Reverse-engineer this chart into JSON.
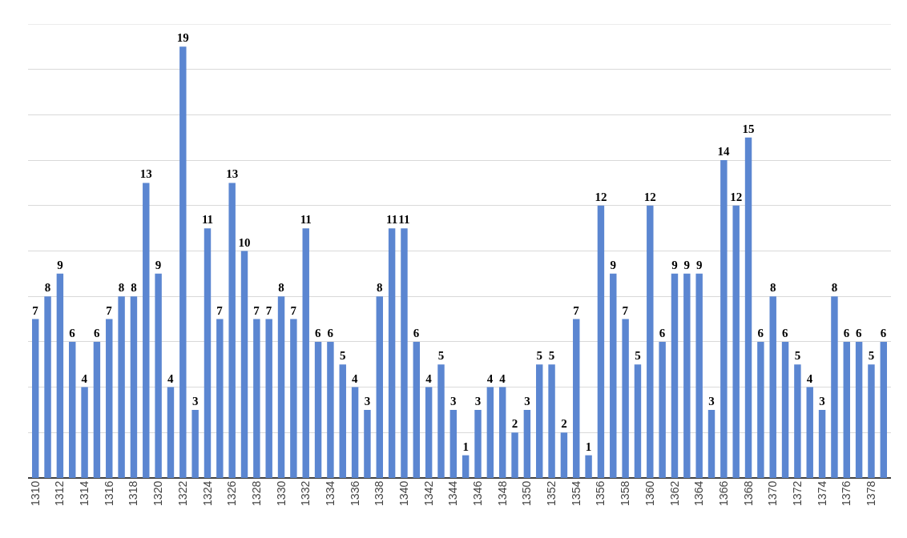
{
  "chart_data": {
    "type": "bar",
    "categories": [
      "1310",
      null,
      "1312",
      null,
      "1314",
      null,
      "1316",
      null,
      "1318",
      null,
      "1320",
      null,
      "1322",
      null,
      "1324",
      null,
      "1326",
      null,
      "1328",
      null,
      "1330",
      null,
      "1332",
      null,
      "1334",
      null,
      "1336",
      null,
      "1338",
      null,
      "1340",
      null,
      "1342",
      null,
      "1344",
      null,
      "1346",
      null,
      "1348",
      null,
      "1350",
      null,
      "1352",
      null,
      "1354",
      null,
      "1356",
      null,
      "1358",
      null,
      "1360",
      null,
      "1362",
      null,
      "1364",
      null,
      "1366",
      null,
      "1368",
      null,
      "1370",
      null,
      "1372",
      null,
      "1374",
      null,
      "1376",
      null,
      "1378",
      null
    ],
    "values": [
      7,
      8,
      9,
      6,
      4,
      6,
      7,
      8,
      8,
      13,
      9,
      4,
      19,
      3,
      11,
      7,
      13,
      10,
      7,
      7,
      8,
      7,
      11,
      6,
      6,
      5,
      4,
      3,
      8,
      11,
      11,
      6,
      4,
      5,
      3,
      1,
      3,
      4,
      4,
      2,
      3,
      5,
      5,
      2,
      7,
      1,
      12,
      9,
      7,
      5,
      12,
      6,
      9,
      9,
      9,
      3,
      14,
      12,
      15,
      6,
      8,
      6,
      5,
      4,
      3,
      8,
      6,
      6,
      5,
      6
    ],
    "color": "#5b86d1",
    "data_labels": true,
    "ylim": [
      0,
      20
    ],
    "yticks": [
      {
        "value": 0,
        "label": null
      },
      {
        "value": 2,
        "label": null
      },
      {
        "value": 4,
        "label": null
      },
      {
        "value": 6,
        "label": null
      },
      {
        "value": 8,
        "label": null
      },
      {
        "value": 10,
        "label": null
      },
      {
        "value": 12,
        "label": null
      },
      {
        "value": 14,
        "label": null
      },
      {
        "value": 16,
        "label": null
      },
      {
        "value": 18,
        "label": null
      },
      {
        "value": 20,
        "label": null
      }
    ],
    "grid": "y",
    "tick_labels": "x"
  }
}
